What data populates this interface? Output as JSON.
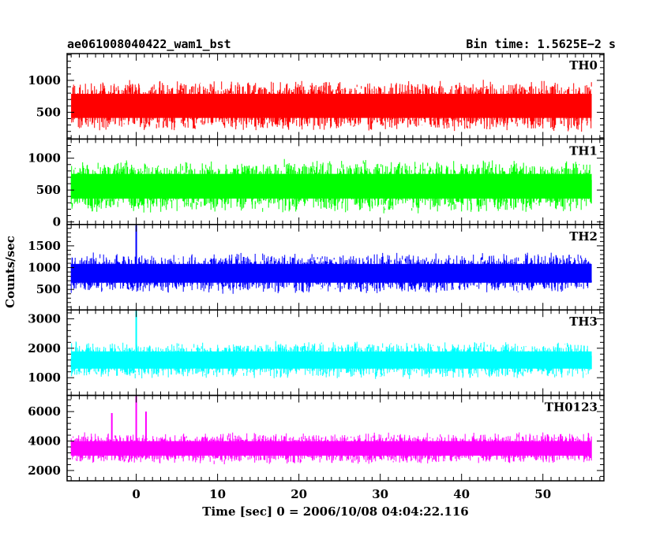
{
  "header": {
    "left": "ae061008040422_wam1_bst",
    "right": "Bin time: 1.5625E−2 s"
  },
  "chart_data": {
    "type": "line",
    "title": "ae061008040422_wam1_bst",
    "bin_time": "Bin time: 1.5625E−2 s",
    "xlabel": "Time [sec] 0 = 2006/10/08 04:04:22.116",
    "ylabel": "Counts/sec",
    "xlim": [
      -8.5,
      57.5
    ],
    "xticks": [
      0,
      10,
      20,
      30,
      40,
      50
    ],
    "x_range_data": [
      -8,
      56
    ],
    "panels": [
      {
        "name": "TH0",
        "color": "#ff0000",
        "ylim": [
          80,
          1420
        ],
        "yticks": [
          500,
          1000
        ],
        "base": 600,
        "spread": 420,
        "min": 150,
        "max": 1400,
        "spikes": []
      },
      {
        "name": "TH1",
        "color": "#00ff00",
        "ylim": [
          -40,
          1300
        ],
        "yticks": [
          0,
          500,
          1000
        ],
        "base": 560,
        "spread": 430,
        "min": 30,
        "max": 1300,
        "spikes": []
      },
      {
        "name": "TH2",
        "color": "#0000ff",
        "ylim": [
          30,
          1990
        ],
        "yticks": [
          500,
          1000,
          1500
        ],
        "base": 870,
        "spread": 480,
        "min": 200,
        "max": 1850,
        "spikes": [
          {
            "x": 0,
            "y": 2000
          }
        ]
      },
      {
        "name": "TH3",
        "color": "#00ffff",
        "ylim": [
          400,
          3300
        ],
        "yticks": [
          1000,
          2000,
          3000
        ],
        "base": 1600,
        "spread": 650,
        "min": 600,
        "max": 3000,
        "spikes": [
          {
            "x": 0,
            "y": 3300
          }
        ]
      },
      {
        "name": "TH0123",
        "color": "#ff00ff",
        "ylim": [
          1300,
          7100
        ],
        "yticks": [
          2000,
          4000,
          6000
        ],
        "base": 3500,
        "spread": 1100,
        "min": 1800,
        "max": 5800,
        "spikes": [
          {
            "x": 0,
            "y": 7100
          },
          {
            "x": -3,
            "y": 5900
          },
          {
            "x": 1.2,
            "y": 6000
          }
        ]
      }
    ]
  }
}
